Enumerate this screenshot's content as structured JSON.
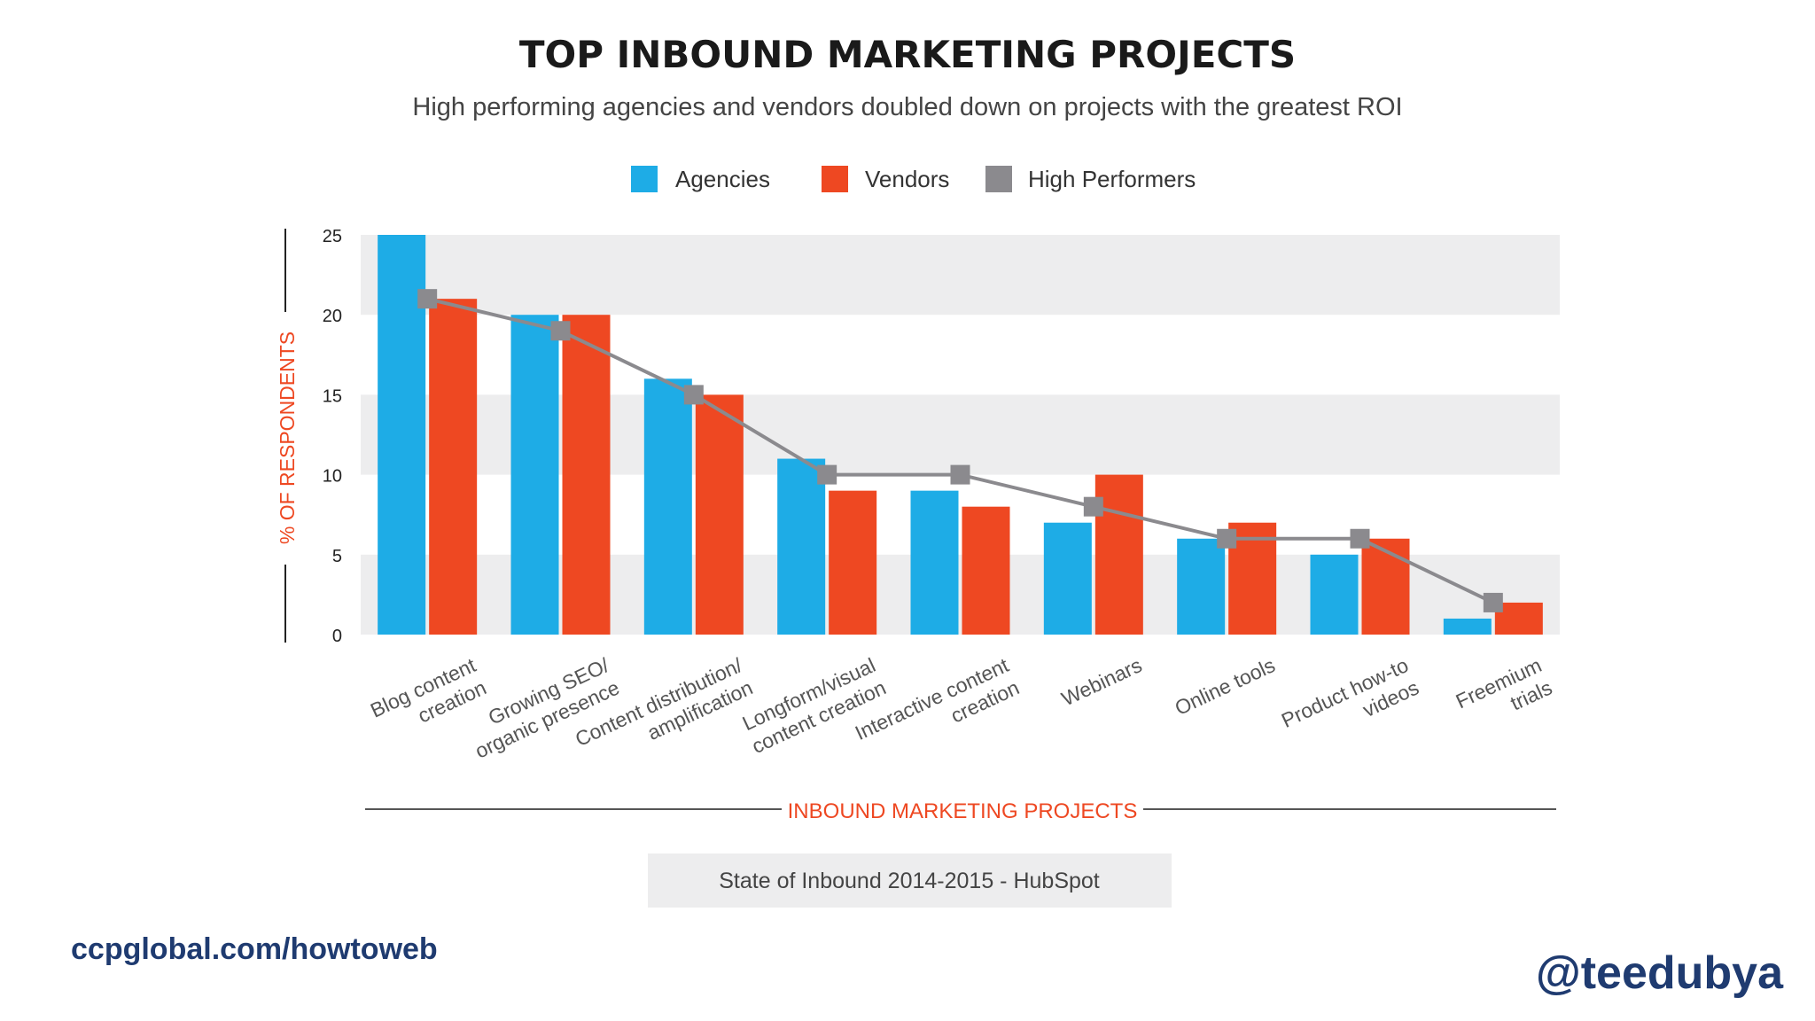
{
  "chart_data": {
    "type": "bar",
    "title": "TOP INBOUND MARKETING PROJECTS",
    "subtitle": "High performing agencies and vendors doubled down on projects with the greatest ROI",
    "xlabel": "INBOUND MARKETING PROJECTS",
    "ylabel": "% OF RESPONDENTS",
    "ylim": [
      0,
      25
    ],
    "yticks": [
      0,
      5,
      10,
      15,
      20,
      25
    ],
    "categories": [
      [
        "Blog content",
        "creation"
      ],
      [
        "Growing SEO/",
        "organic presence"
      ],
      [
        "Content distribution/",
        "amplification"
      ],
      [
        "Longform/visual",
        "content creation"
      ],
      [
        "Interactive content",
        "creation"
      ],
      [
        "Webinars"
      ],
      [
        "Online tools"
      ],
      [
        "Product how-to",
        "videos"
      ],
      [
        "Freemium",
        "trials"
      ]
    ],
    "series": [
      {
        "name": "Agencies",
        "kind": "bar",
        "color": "#1EACE6",
        "values": [
          25,
          20,
          16,
          11,
          9,
          7,
          6,
          5,
          1
        ]
      },
      {
        "name": "Vendors",
        "kind": "bar",
        "color": "#EE4822",
        "values": [
          21,
          20,
          15,
          9,
          8,
          10,
          7,
          6,
          2
        ]
      },
      {
        "name": "High Performers",
        "kind": "line",
        "color": "#8B8A8E",
        "values": [
          21,
          19,
          15,
          10,
          10,
          8,
          6,
          6,
          2
        ]
      }
    ],
    "legend_position": "top-center",
    "source": "State of Inbound 2014-2015 - HubSpot",
    "colors": {
      "band": "#EDEDEE",
      "axis_label": "#EE4822",
      "text": "#333333",
      "line": "#8B8A8E"
    }
  },
  "footer": {
    "link": "ccpglobal.com/howtoweb",
    "handle": "@teedubya"
  }
}
